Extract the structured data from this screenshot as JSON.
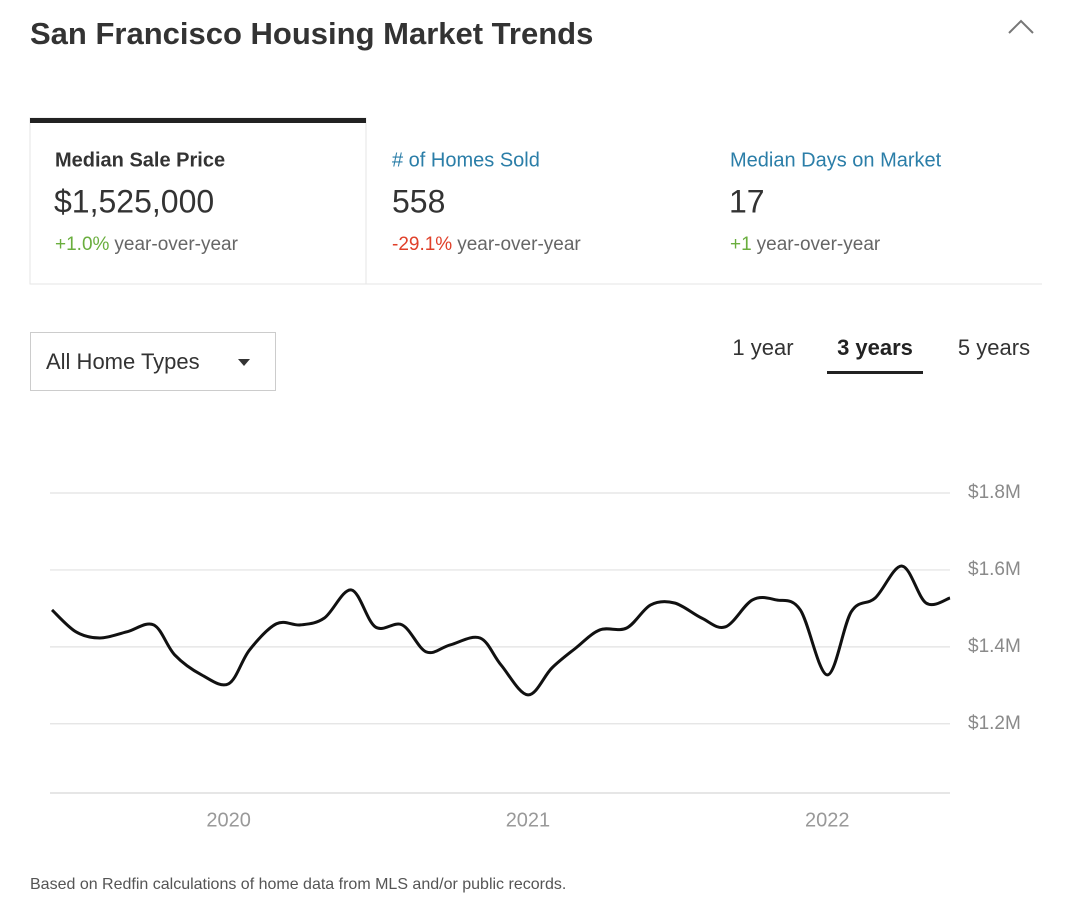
{
  "header": {
    "title": "San Francisco Housing Market Trends"
  },
  "tabs": [
    {
      "label": "Median Sale Price",
      "value": "$1,525,000",
      "change": "+1.0%",
      "change_suffix": "year-over-year"
    },
    {
      "label": "# of Homes Sold",
      "value": "558",
      "change": "-29.1%",
      "change_suffix": "year-over-year"
    },
    {
      "label": "Median Days on Market",
      "value": "17",
      "change": "+1",
      "change_suffix": "year-over-year"
    }
  ],
  "dropdown": {
    "label": "All Home Types"
  },
  "ranges": [
    "1 year",
    "3 years",
    "5 years"
  ],
  "chart_data": {
    "type": "line",
    "x": [
      2019.41,
      2019.49,
      2019.57,
      2019.66,
      2019.75,
      2019.82,
      2019.91,
      2020.0,
      2020.07,
      2020.16,
      2020.24,
      2020.32,
      2020.41,
      2020.49,
      2020.58,
      2020.66,
      2020.74,
      2020.84,
      2020.91,
      2021.0,
      2021.08,
      2021.16,
      2021.24,
      2021.33,
      2021.41,
      2021.49,
      2021.58,
      2021.66,
      2021.75,
      2021.83,
      2021.91,
      2022.0,
      2022.08,
      2022.16,
      2022.25,
      2022.33,
      2022.41
    ],
    "series": [
      {
        "color": "#111111",
        "values": [
          1496000,
          1439000,
          1423000,
          1439000,
          1457000,
          1379000,
          1327000,
          1304000,
          1392000,
          1460000,
          1457000,
          1475000,
          1548000,
          1452000,
          1457000,
          1387000,
          1405000,
          1423000,
          1353000,
          1275000,
          1345000,
          1397000,
          1444000,
          1449000,
          1509000,
          1514000,
          1475000,
          1452000,
          1522000,
          1522000,
          1496000,
          1327000,
          1491000,
          1527000,
          1610000,
          1514000,
          1527000
        ]
      }
    ],
    "xlim": [
      2019.41,
      2022.41
    ],
    "xticks": [
      2020,
      2021,
      2022
    ],
    "ylim": [
      1020000,
      1800000
    ],
    "yticks": [
      {
        "value": 1200000,
        "label": "$1.2M"
      },
      {
        "value": 1400000,
        "label": "$1.4M"
      },
      {
        "value": 1600000,
        "label": "$1.6M"
      },
      {
        "value": 1800000,
        "label": "$1.8M"
      }
    ],
    "grid": true
  },
  "footer": {
    "note": "Based on Redfin calculations of home data from MLS and/or public records."
  }
}
